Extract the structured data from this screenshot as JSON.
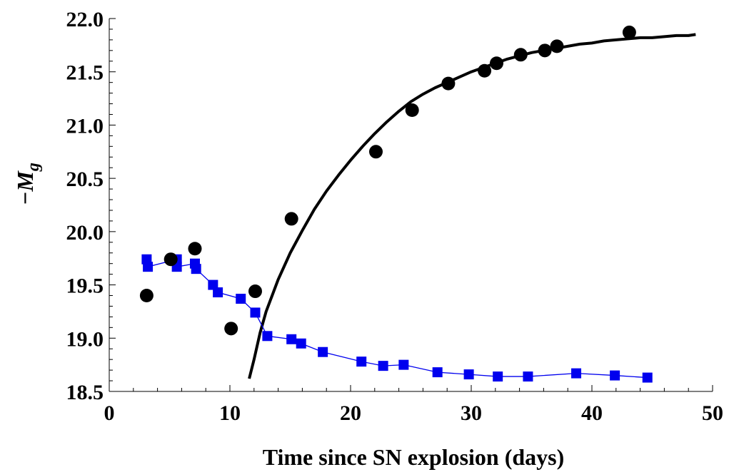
{
  "chart_data": {
    "type": "scatter",
    "title": "",
    "xlabel": "Time since SN explosion (days)",
    "ylabel_prefix": "−M",
    "ylabel_sub": "g",
    "xlim": [
      0,
      50
    ],
    "ylim": [
      18.5,
      22.0
    ],
    "x_ticks": [
      0,
      10,
      20,
      30,
      40,
      50
    ],
    "x_tick_labels": [
      "0",
      "10",
      "20",
      "30",
      "40",
      "50"
    ],
    "y_ticks": [
      18.5,
      19.0,
      19.5,
      20.0,
      20.5,
      21.0,
      21.5,
      22.0
    ],
    "y_tick_labels": [
      "18.5",
      "19.0",
      "19.5",
      "20.0",
      "20.5",
      "21.0",
      "21.5",
      "22.0"
    ],
    "grid": false,
    "legend": "none",
    "series": [
      {
        "kind": "circle-markers",
        "color": "#000000",
        "points": [
          [
            3.1,
            19.4
          ],
          [
            5.1,
            19.74
          ],
          [
            7.1,
            19.84
          ],
          [
            10.1,
            19.09
          ],
          [
            12.1,
            19.44
          ],
          [
            15.1,
            20.12
          ],
          [
            22.1,
            20.75
          ],
          [
            25.1,
            21.14
          ],
          [
            28.1,
            21.39
          ],
          [
            31.1,
            21.51
          ],
          [
            32.1,
            21.58
          ],
          [
            34.1,
            21.66
          ],
          [
            36.1,
            21.7
          ],
          [
            37.1,
            21.74
          ],
          [
            43.1,
            21.87
          ]
        ]
      },
      {
        "kind": "model-curve",
        "color": "#000000",
        "points": [
          [
            11.6,
            18.62
          ],
          [
            12.0,
            18.8
          ],
          [
            12.5,
            19.05
          ],
          [
            13.0,
            19.25
          ],
          [
            14.0,
            19.55
          ],
          [
            15.0,
            19.8
          ],
          [
            16.0,
            20.01
          ],
          [
            17.0,
            20.21
          ],
          [
            18.0,
            20.38
          ],
          [
            19.0,
            20.53
          ],
          [
            20.0,
            20.67
          ],
          [
            21.0,
            20.8
          ],
          [
            22.0,
            20.92
          ],
          [
            23.0,
            21.03
          ],
          [
            24.0,
            21.13
          ],
          [
            25.0,
            21.22
          ],
          [
            26.0,
            21.29
          ],
          [
            27.0,
            21.35
          ],
          [
            28.0,
            21.4
          ],
          [
            29.0,
            21.45
          ],
          [
            30.0,
            21.5
          ],
          [
            31.0,
            21.54
          ],
          [
            32.0,
            21.58
          ],
          [
            33.0,
            21.62
          ],
          [
            34.0,
            21.65
          ],
          [
            35.0,
            21.68
          ],
          [
            36.0,
            21.7
          ],
          [
            37.0,
            21.72
          ],
          [
            38.0,
            21.74
          ],
          [
            39.0,
            21.76
          ],
          [
            40.0,
            21.77
          ],
          [
            41.0,
            21.79
          ],
          [
            42.0,
            21.8
          ],
          [
            43.0,
            21.81
          ],
          [
            44.0,
            21.82
          ],
          [
            45.0,
            21.82
          ],
          [
            46.0,
            21.83
          ],
          [
            47.0,
            21.84
          ],
          [
            48.0,
            21.84
          ],
          [
            48.6,
            21.85
          ]
        ]
      },
      {
        "kind": "square-markers-line",
        "color": "#0000ee",
        "points": [
          [
            3.1,
            19.74
          ],
          [
            3.2,
            19.67
          ],
          [
            5.6,
            19.74
          ],
          [
            5.6,
            19.67
          ],
          [
            7.1,
            19.7
          ],
          [
            7.2,
            19.65
          ],
          [
            8.6,
            19.5
          ],
          [
            9.0,
            19.43
          ],
          [
            10.9,
            19.37
          ],
          [
            12.1,
            19.24
          ],
          [
            13.1,
            19.02
          ],
          [
            15.1,
            18.99
          ],
          [
            15.9,
            18.95
          ],
          [
            17.7,
            18.87
          ],
          [
            20.9,
            18.78
          ],
          [
            22.7,
            18.74
          ],
          [
            24.4,
            18.75
          ],
          [
            27.2,
            18.68
          ],
          [
            29.8,
            18.66
          ],
          [
            32.2,
            18.64
          ],
          [
            34.7,
            18.64
          ],
          [
            38.7,
            18.67
          ],
          [
            41.9,
            18.65
          ],
          [
            44.6,
            18.63
          ]
        ]
      }
    ]
  }
}
